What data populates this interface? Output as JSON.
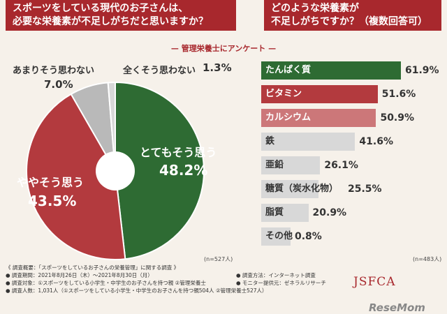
{
  "questions": {
    "left": [
      "スポーツをしている現代のお子さんは、",
      "必要な栄養素が不足しがちだと思いますか？"
    ],
    "right": [
      "どのような栄養素が",
      "不足しがちですか？（複数回答可）"
    ]
  },
  "subtitle": "— 管理栄養士にアンケート —",
  "colors": {
    "accent": "#a8282d",
    "green": "#2e6b33",
    "red": "#b33a3e",
    "pink": "#cc7779",
    "gray": "#b9b9b9",
    "light_gray": "#d8d8d8"
  },
  "chart_data": [
    {
      "type": "pie",
      "slices": [
        {
          "label": "とてもそう思う",
          "value": 48.2,
          "display": "48.2%",
          "color": "#2e6b33"
        },
        {
          "label": "ややそう思う",
          "value": 43.5,
          "display": "43.5%",
          "color": "#b33a3e"
        },
        {
          "label": "あまりそう思わない",
          "value": 7.0,
          "display": "7.0%",
          "color": "#b9b9b9"
        },
        {
          "label": "全くそう思わない",
          "value": 1.3,
          "display": "1.3%",
          "color": "#d8d8d8"
        }
      ],
      "n": "(n=527人)"
    },
    {
      "type": "bar",
      "orientation": "horizontal",
      "categories": [
        "たんぱく質",
        "ビタミン",
        "カルシウム",
        "鉄",
        "亜鉛",
        "糖質（炭水化物）",
        "脂質",
        "その他"
      ],
      "values": [
        61.9,
        51.6,
        50.9,
        41.6,
        26.1,
        25.5,
        20.9,
        0.8
      ],
      "display": [
        "61.9%",
        "51.6%",
        "50.9%",
        "41.6%",
        "26.1%",
        "25.5%",
        "20.9%",
        "0.8%"
      ],
      "colors": [
        "#2e6b33",
        "#b33a3e",
        "#cc7779",
        "#d8d8d8",
        "#d8d8d8",
        "#d8d8d8",
        "#d8d8d8",
        "#d8d8d8"
      ],
      "label_colors": [
        "#ffffff",
        "#ffffff",
        "#ffffff",
        "#333333",
        "#333333",
        "#333333",
        "#333333",
        "#333333"
      ],
      "xlim": [
        0,
        70
      ],
      "n": "(n=483人)"
    }
  ],
  "footer": {
    "lines_left": [
      "《 調査概要：「スポーツをしているお子さんの栄養管理」に関する調査 》",
      "● 調査期間：2021年8月26日（木）〜2021年8月30日（月）",
      "● 調査対象：①スポーツをしている小学生・中学生のお子さんを持つ親 ②管理栄養士",
      "● 調査人数：1,031人（①スポーツをしている小学生・中学生のお子さんを持つ親504人 ②管理栄養士527人）"
    ],
    "lines_right": [
      "● 調査方法：インターネット調査",
      "● モニター提供元：ゼネラルリサーチ"
    ]
  },
  "logo": "JSFCA",
  "watermark": "ReseMom"
}
